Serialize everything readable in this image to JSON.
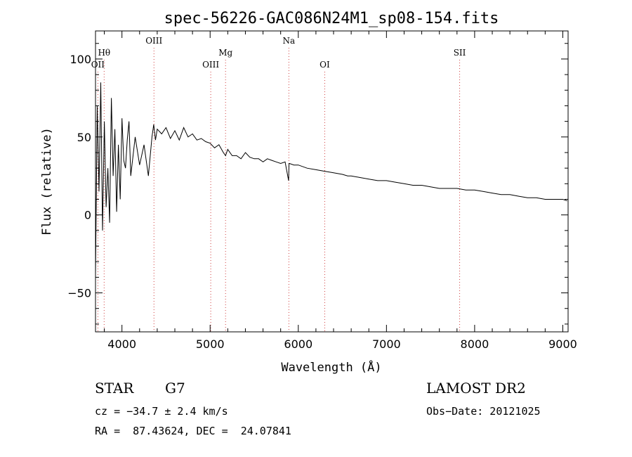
{
  "chart_data": {
    "type": "line",
    "title": "spec-56226-GAC086N24M1_sp08-154.fits",
    "xlabel": "Wavelength (Å)",
    "ylabel": "Flux (relative)",
    "xlim": [
      3700,
      9060
    ],
    "ylim": [
      -75,
      118
    ],
    "xticks": [
      4000,
      5000,
      6000,
      7000,
      8000,
      9000
    ],
    "yticks": [
      -50,
      0,
      50,
      100
    ],
    "grid": false,
    "series": [
      {
        "color": "#000000",
        "x": [
          3700,
          3720,
          3740,
          3760,
          3780,
          3800,
          3820,
          3840,
          3860,
          3880,
          3900,
          3920,
          3940,
          3960,
          3980,
          4000,
          4020,
          4040,
          4060,
          4080,
          4100,
          4150,
          4200,
          4250,
          4300,
          4340,
          4360,
          4380,
          4400,
          4450,
          4500,
          4550,
          4600,
          4650,
          4700,
          4750,
          4800,
          4850,
          4900,
          4950,
          5000,
          5050,
          5100,
          5150,
          5175,
          5200,
          5250,
          5300,
          5350,
          5400,
          5450,
          5500,
          5550,
          5600,
          5650,
          5700,
          5750,
          5800,
          5850,
          5890,
          5895,
          5900,
          5950,
          6000,
          6100,
          6200,
          6300,
          6400,
          6500,
          6560,
          6600,
          6700,
          6800,
          6900,
          7000,
          7100,
          7200,
          7300,
          7400,
          7500,
          7600,
          7700,
          7800,
          7900,
          8000,
          8100,
          8200,
          8300,
          8400,
          8500,
          8600,
          8700,
          8800,
          8900,
          9000,
          9050
        ],
        "y": [
          -38,
          70,
          15,
          85,
          -10,
          60,
          5,
          30,
          -5,
          75,
          25,
          55,
          2,
          45,
          10,
          62,
          35,
          30,
          48,
          60,
          25,
          50,
          32,
          45,
          25,
          50,
          58,
          48,
          55,
          52,
          56,
          49,
          54,
          48,
          56,
          50,
          52,
          48,
          49,
          47,
          46,
          43,
          45,
          40,
          38,
          42,
          38,
          38,
          36,
          40,
          37,
          36,
          36,
          34,
          36,
          35,
          34,
          33,
          34,
          22,
          33,
          33,
          32,
          32,
          30,
          29,
          28,
          27,
          26,
          25,
          25,
          24,
          23,
          22,
          22,
          21,
          20,
          19,
          19,
          18,
          17,
          17,
          17,
          16,
          16,
          15,
          14,
          13,
          13,
          12,
          11,
          11,
          10,
          10,
          10,
          9
        ]
      }
    ],
    "annotations": [
      {
        "label": "OII",
        "x": 3727,
        "row": "lower"
      },
      {
        "label": "Hθ",
        "x": 3798,
        "row": "middle"
      },
      {
        "label": "OIII",
        "x": 4363,
        "row": "upper"
      },
      {
        "label": "OIII",
        "x": 5007,
        "row": "lower"
      },
      {
        "label": "Mg",
        "x": 5175,
        "row": "middle"
      },
      {
        "label": "Na",
        "x": 5893,
        "row": "upper"
      },
      {
        "label": "OI",
        "x": 6300,
        "row": "lower"
      },
      {
        "label": "SII",
        "x": 7830,
        "row": "middle"
      }
    ],
    "annotation_line_color": "#d04040"
  },
  "info": {
    "object_class": "STAR",
    "subclass": "G7",
    "survey": "LAMOST DR2",
    "cz": "cz = −34.7 ± 2.4 km/s",
    "obs_date": "Obs−Date: 20121025",
    "coords": "RA =  87.43624, DEC =  24.07841"
  }
}
